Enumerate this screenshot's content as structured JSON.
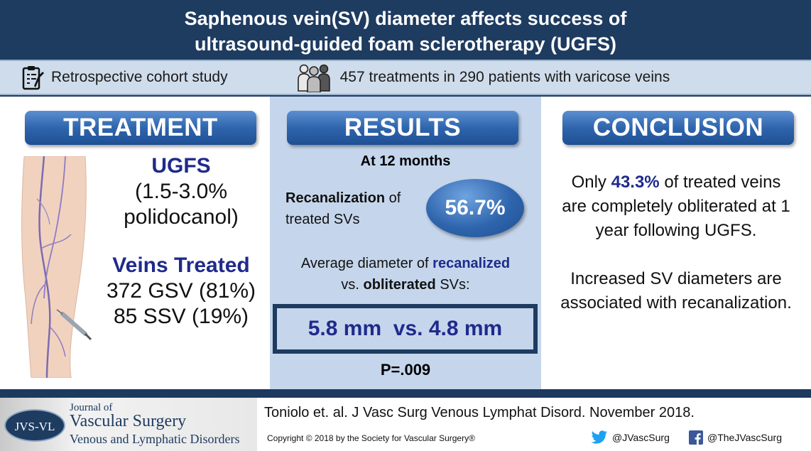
{
  "header": {
    "title_line1": "Saphenous vein(SV) diameter affects success of",
    "title_line2": "ultrasound-guided foam sclerotherapy (UGFS)"
  },
  "info_bar": {
    "study_type": "Retrospective cohort study",
    "population": "457 treatments in 290 patients with varicose veins"
  },
  "treatment": {
    "heading": "TREATMENT",
    "agent": "UGFS",
    "concentration_line1": "(1.5-3.0%",
    "concentration_line2": "polidocanol)",
    "veins_heading": "Veins Treated",
    "gsv": "372 GSV (81%)",
    "ssv": "85 SSV (19%)"
  },
  "results": {
    "heading": "RESULTS",
    "timepoint": "At 12 months",
    "recan_bold": "Recanalization",
    "recan_of": " of",
    "recan_line2": "treated SVs",
    "recan_rate": "56.7%",
    "avg_pre": "Average diameter of ",
    "avg_recanalized": "recanalized",
    "avg_vs": "vs. ",
    "avg_obliterated": "obliterated",
    "avg_post": " SVs:",
    "diameters": "5.8 mm  vs. 4.8 mm",
    "p_value": "P=.009"
  },
  "conclusion": {
    "heading": "CONCLUSION",
    "c1_pre": "Only ",
    "c1_pct": "43.3%",
    "c1_post": " of treated veins",
    "c1_line2": "are completely obliterated at 1",
    "c1_line3": "year following UGFS.",
    "c2_line1": "Increased SV diameters are",
    "c2_line2": "associated with recanalization."
  },
  "footer": {
    "logo_abbrev": "JVS-VL",
    "journal_of": "Journal of",
    "journal_name": "Vascular Surgery",
    "journal_sub": "Venous and Lymphatic Disorders",
    "citation": "Toniolo et. al. J Vasc Surg Venous Lymphat Disord. November 2018.",
    "copyright": "Copyright © 2018 by the Society for Vascular Surgery®",
    "twitter": "@JVascSurg",
    "facebook": "@TheJVascSurg"
  },
  "colors": {
    "header_bg": "#1e3b60",
    "accent_navy": "#1f2a8c",
    "pill_blue": "#2f65ad",
    "results_bg": "#c5d6ec"
  }
}
